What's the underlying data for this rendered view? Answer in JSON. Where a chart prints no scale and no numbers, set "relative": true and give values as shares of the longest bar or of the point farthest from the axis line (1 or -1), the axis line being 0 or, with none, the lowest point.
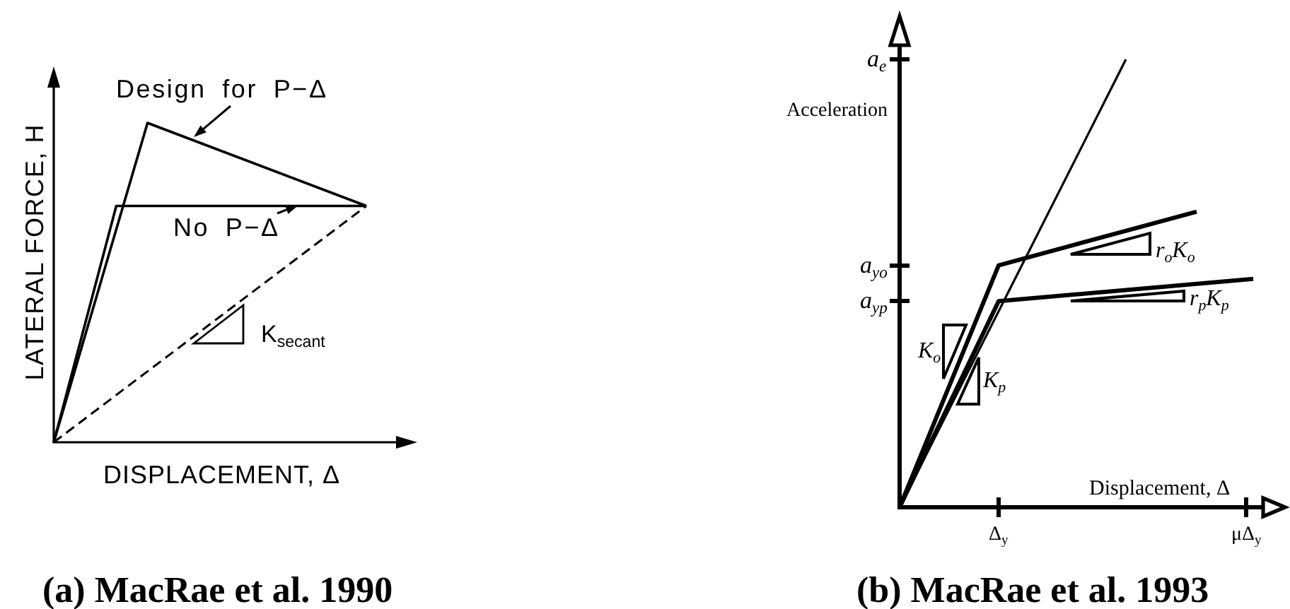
{
  "chart_data": [
    {
      "type": "line",
      "relative": true,
      "xlabel": "DISPLACEMENT, Δ",
      "ylabel": "LATERAL FORCE, H",
      "categories": [
        null,
        null,
        null,
        null,
        null,
        null,
        null,
        null,
        null,
        null,
        null
      ],
      "series": [
        {
          "name": "Design for P−Δ",
          "color": "#000000",
          "values": [
            0,
            null,
            null,
            1,
            null,
            null,
            null,
            null,
            null,
            null,
            0.74
          ]
        },
        {
          "name": "No P−Δ",
          "color": "#000000",
          "values": [
            0,
            null,
            0.74,
            null,
            null,
            null,
            null,
            null,
            null,
            null,
            0.74
          ]
        },
        {
          "color": "#000000",
          "values": [
            0,
            null,
            null,
            null,
            null,
            null,
            null,
            null,
            null,
            null,
            0.74
          ],
          "line_style": "dashed"
        }
      ],
      "annotations": [
        "K$_{secant}$",
        "(a) MacRae et al. 1990"
      ]
    },
    {
      "type": "line",
      "relative": true,
      "xlabel": "Displacement, Δ",
      "ylabel": "Acceleration",
      "categories": [
        null,
        null,
        null,
        null,
        null,
        null,
        null,
        null,
        null,
        null,
        null,
        null,
        null,
        null,
        "Δ$_{y}$",
        null,
        null,
        null,
        null,
        null,
        null,
        null,
        null,
        null,
        null,
        null,
        null,
        null,
        null,
        null,
        null,
        null,
        null,
        null,
        null,
        null,
        null,
        null,
        null,
        null,
        null,
        null,
        null,
        null,
        null,
        null,
        null,
        null,
        null,
        "μΔ$_{y}$",
        null
      ],
      "series": [
        {
          "color": "#000000",
          "values": [
            0,
            null,
            null,
            null,
            null,
            null,
            null,
            null,
            null,
            null,
            null,
            null,
            null,
            null,
            null,
            null,
            null,
            null,
            null,
            null,
            null,
            null,
            null,
            null,
            null,
            null,
            null,
            null,
            null,
            null,
            null,
            null,
            1,
            null,
            null,
            null,
            null,
            null,
            null,
            null,
            null,
            null,
            null,
            null,
            null,
            null,
            null,
            null,
            null,
            null,
            null
          ]
        },
        {
          "color": "#000000",
          "values": [
            0,
            null,
            null,
            null,
            null,
            null,
            null,
            null,
            null,
            null,
            null,
            null,
            null,
            null,
            0.54,
            null,
            null,
            null,
            null,
            null,
            null,
            null,
            null,
            null,
            null,
            null,
            null,
            null,
            null,
            null,
            null,
            null,
            null,
            null,
            null,
            null,
            null,
            null,
            null,
            null,
            null,
            null,
            0.66,
            null,
            null,
            null,
            null,
            null,
            null,
            null,
            null
          ]
        },
        {
          "color": "#000000",
          "values": [
            0,
            null,
            null,
            null,
            null,
            null,
            null,
            null,
            null,
            null,
            null,
            null,
            null,
            null,
            0.46,
            null,
            null,
            null,
            null,
            null,
            null,
            null,
            null,
            null,
            null,
            null,
            null,
            null,
            null,
            null,
            null,
            null,
            null,
            null,
            null,
            null,
            null,
            null,
            null,
            null,
            null,
            null,
            null,
            null,
            null,
            null,
            null,
            null,
            null,
            null,
            0.51
          ]
        }
      ],
      "annotations": [
        "a$_{e}$",
        "a$_{yo}$",
        "a$_{yp}$",
        "K$_{o}$",
        "K$_{p}$",
        "r$_{o}$K$_{o}$",
        "r$_{p}$K$_{p}$",
        "(b) MacRae et al. 1993"
      ]
    }
  ]
}
